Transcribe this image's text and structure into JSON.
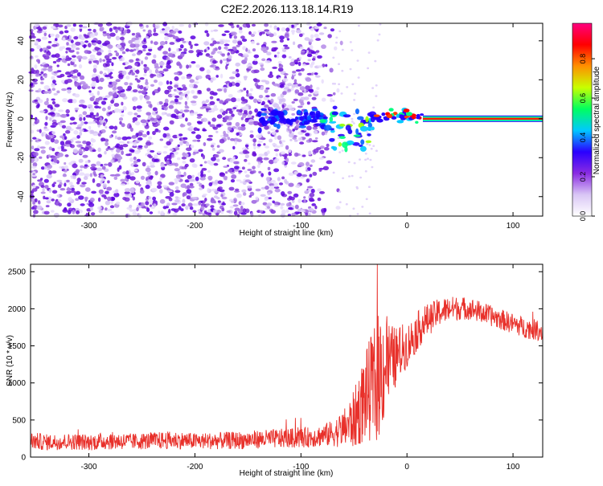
{
  "title": "C2E2.2026.113.18.14.R19",
  "chart_data": [
    {
      "type": "heatmap",
      "xlabel": "Height of straight line (km)",
      "ylabel": "Frequency (Hz)",
      "xlim": [
        -355,
        128
      ],
      "ylim": [
        -50,
        49
      ],
      "xticks": [
        -300,
        -200,
        -100,
        0,
        100
      ],
      "yticks": [
        -40,
        -20,
        0,
        20,
        40
      ],
      "colorbar": {
        "label": "Normalized spectral amplitude",
        "range": [
          0.0,
          0.98
        ],
        "ticks": [
          "0.0",
          "0.2",
          "0.4",
          "0.6",
          "0.8"
        ],
        "colors": [
          "#ffffff",
          "#d9c6f5",
          "#8a2be2",
          "#2a00ff",
          "#00c8ff",
          "#00ff60",
          "#c8ff00",
          "#ff9000",
          "#ff0000",
          "#ff0080"
        ]
      },
      "features": {
        "noise_region_x": [
          -355,
          -70
        ],
        "noise_level": 0.1,
        "transition_x": [
          -140,
          -30
        ],
        "line_frequency_hz": 0,
        "line_start_x": 15,
        "line_amplitude": 0.85
      }
    },
    {
      "type": "line",
      "xlabel": "Height of straight line (km)",
      "ylabel": "SNR (10 * v/v)",
      "xlim": [
        -355,
        128
      ],
      "ylim": [
        0,
        2600
      ],
      "xticks": [
        -300,
        -200,
        -100,
        0,
        100
      ],
      "yticks": [
        0,
        500,
        1000,
        1500,
        2000,
        2500
      ],
      "series": [
        {
          "color": "#e8302a",
          "x": [
            -355,
            -340,
            -320,
            -300,
            -280,
            -260,
            -240,
            -220,
            -200,
            -180,
            -160,
            -140,
            -120,
            -100,
            -90,
            -80,
            -70,
            -60,
            -50,
            -45,
            -40,
            -35,
            -30,
            -25,
            -20,
            -15,
            -10,
            -5,
            0,
            5,
            10,
            15,
            20,
            25,
            30,
            40,
            50,
            60,
            70,
            80,
            90,
            100,
            110,
            120,
            128
          ],
          "y": [
            220,
            200,
            210,
            200,
            220,
            210,
            220,
            230,
            215,
            220,
            225,
            240,
            250,
            260,
            270,
            290,
            320,
            380,
            500,
            650,
            800,
            900,
            1000,
            1150,
            1250,
            1300,
            1350,
            1450,
            1500,
            1600,
            1700,
            1800,
            1850,
            1900,
            1950,
            2000,
            2010,
            2000,
            1950,
            1900,
            1850,
            1800,
            1750,
            1720,
            1700
          ],
          "noise_amplitude": [
            120,
            110,
            110,
            110,
            120,
            110,
            115,
            120,
            110,
            115,
            120,
            125,
            130,
            135,
            140,
            150,
            180,
            250,
            400,
            500,
            600,
            700,
            800,
            900,
            700,
            500,
            400,
            350,
            300,
            280,
            260,
            250,
            220,
            200,
            190,
            170,
            160,
            150,
            150,
            140,
            140,
            140,
            140,
            140,
            140
          ]
        }
      ]
    }
  ]
}
